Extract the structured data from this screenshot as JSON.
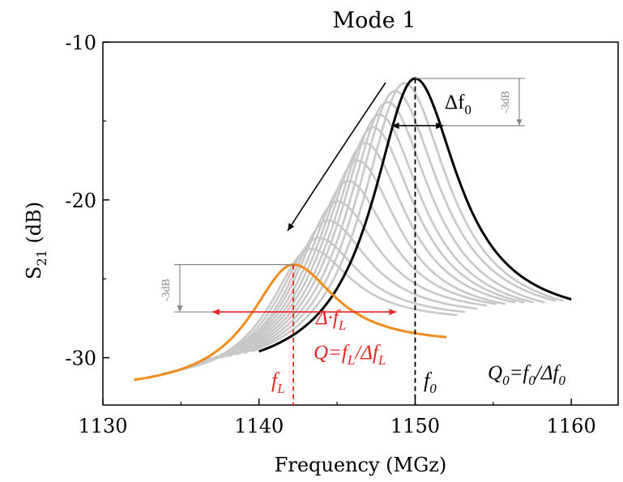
{
  "chart_data": {
    "type": "line",
    "title": "Mode 1",
    "xlabel": "Frequency (MGz)",
    "ylabel": {
      "main": "S",
      "sub": "21",
      "unit": " (dB)"
    },
    "xlim": [
      1130,
      1163
    ],
    "ylim": [
      -33,
      -10
    ],
    "xticks": [
      "1130",
      "1140",
      "1150",
      "1160"
    ],
    "yticks": [
      "-10",
      "-20",
      "-30"
    ],
    "colors": {
      "loaded": "#f28c1e",
      "intermediate": "#c8c8c8",
      "unloaded": "#000000",
      "annotation": "#e8251f",
      "grey_annotation": "#888888"
    },
    "series": [
      {
        "role": "unloaded",
        "peak_x": 1150,
        "peak_y": -12.3,
        "x_start": 1140,
        "y_start": -29.6,
        "x_end": 1160,
        "y_end": -26.3
      },
      {
        "role": "intermediate",
        "peak_x": 1149.3,
        "peak_y": -12.6,
        "x_start": 1139.5,
        "y_start": -29.6,
        "x_end": 1159.5,
        "y_end": -26.4
      },
      {
        "role": "intermediate",
        "peak_x": 1148.7,
        "peak_y": -13.1,
        "x_start": 1139.0,
        "y_start": -29.7,
        "x_end": 1159.0,
        "y_end": -26.4
      },
      {
        "role": "intermediate",
        "peak_x": 1148.2,
        "peak_y": -13.8,
        "x_start": 1138.5,
        "y_start": -29.8,
        "x_end": 1158.3,
        "y_end": -26.5
      },
      {
        "role": "intermediate",
        "peak_x": 1147.7,
        "peak_y": -14.6,
        "x_start": 1138.0,
        "y_start": -29.9,
        "x_end": 1157.6,
        "y_end": -26.5
      },
      {
        "role": "intermediate",
        "peak_x": 1147.3,
        "peak_y": -15.4,
        "x_start": 1137.5,
        "y_start": -30.0,
        "x_end": 1157.0,
        "y_end": -26.5
      },
      {
        "role": "intermediate",
        "peak_x": 1146.8,
        "peak_y": -16.4,
        "x_start": 1137.0,
        "y_start": -30.1,
        "x_end": 1156.4,
        "y_end": -26.5
      },
      {
        "role": "intermediate",
        "peak_x": 1146.3,
        "peak_y": -17.5,
        "x_start": 1136.5,
        "y_start": -30.2,
        "x_end": 1155.8,
        "y_end": -26.6
      },
      {
        "role": "intermediate",
        "peak_x": 1145.7,
        "peak_y": -18.8,
        "x_start": 1136.0,
        "y_start": -30.3,
        "x_end": 1155.2,
        "y_end": -26.6
      },
      {
        "role": "intermediate",
        "peak_x": 1145.0,
        "peak_y": -20.1,
        "x_start": 1135.5,
        "y_start": -30.5,
        "x_end": 1154.6,
        "y_end": -26.7
      },
      {
        "role": "intermediate",
        "peak_x": 1144.4,
        "peak_y": -21.3,
        "x_start": 1135.0,
        "y_start": -30.7,
        "x_end": 1154.0,
        "y_end": -26.9
      },
      {
        "role": "intermediate",
        "peak_x": 1143.8,
        "peak_y": -22.4,
        "x_start": 1134.3,
        "y_start": -30.9,
        "x_end": 1153.2,
        "y_end": -27.1
      },
      {
        "role": "intermediate",
        "peak_x": 1143.3,
        "peak_y": -23.1,
        "x_start": 1133.8,
        "y_start": -31.0,
        "x_end": 1152.7,
        "y_end": -27.3
      },
      {
        "role": "loaded",
        "peak_x": 1142.2,
        "peak_y": -24.1,
        "x_start": 1132.0,
        "y_start": -31.4,
        "x_end": 1152.0,
        "y_end": -28.7
      }
    ],
    "annotations": {
      "delta_f0": {
        "label_main": "Δf",
        "label_sub": "0"
      },
      "grey_3db": "-3dB",
      "delta_fL": {
        "label_main": "Δ·f",
        "label_sub": "L"
      },
      "q_loaded": {
        "p1": "Q=f",
        "s1": "L",
        "p2": "/Δf",
        "s2": "L"
      },
      "f0_label": {
        "main": "f",
        "sub": "0"
      },
      "fL_label": {
        "main": "f",
        "sub": "L"
      },
      "q_unloaded": {
        "p1": "Q",
        "s1": "0",
        "p2": "=f",
        "s2": "0",
        "p3": "/Δf",
        "s3": "0"
      },
      "f0_x": 1150,
      "fL_x": 1142.2,
      "f0_halfwidth_left": 1148.5,
      "f0_halfwidth_right": 1151.8,
      "f0_minus3db_y": -15.3,
      "fL_halfwidth_left": 1137.0,
      "fL_halfwidth_right": 1148.8,
      "fL_minus3db_y": -27.1
    }
  }
}
